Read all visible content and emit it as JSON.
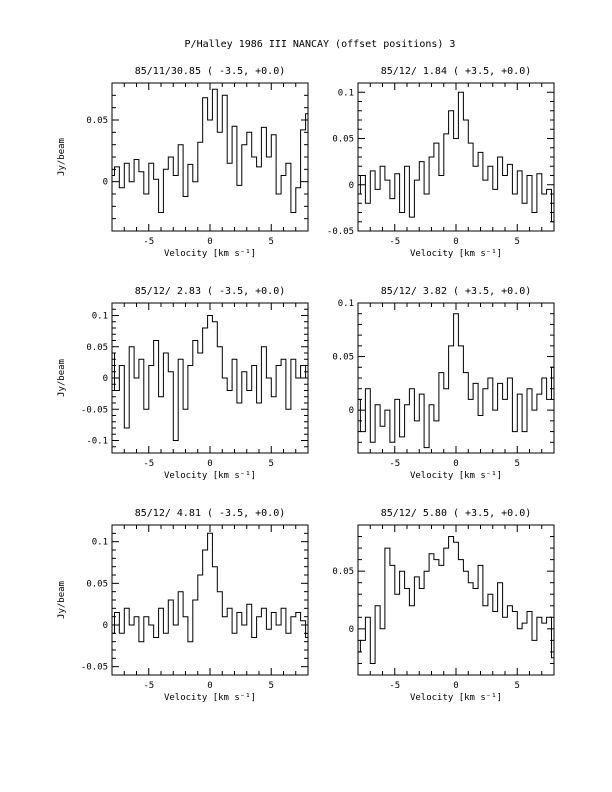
{
  "page_title": "P/Halley 1986 III   NANCAY      (offset positions)     3",
  "chart_data": [
    {
      "type": "line",
      "title": "85/11/30.85  ( -3.5, +0.0)",
      "xlabel": "Velocity [km s⁻¹]",
      "ylabel": "Jy/beam",
      "xlim": [
        -8,
        8
      ],
      "ylim": [
        -0.04,
        0.08
      ],
      "xticks": [
        -5,
        0,
        5
      ],
      "yticks": [
        0,
        0.05
      ],
      "ytick_labels": [
        "0",
        "0.05"
      ],
      "x": [
        -8.0,
        -7.6,
        -7.2,
        -6.8,
        -6.4,
        -6.0,
        -5.6,
        -5.2,
        -4.8,
        -4.4,
        -4.0,
        -3.6,
        -3.2,
        -2.8,
        -2.4,
        -2.0,
        -1.6,
        -1.2,
        -0.8,
        -0.4,
        0.0,
        0.4,
        0.8,
        1.2,
        1.6,
        2.0,
        2.4,
        2.8,
        3.2,
        3.6,
        4.0,
        4.4,
        4.8,
        5.2,
        5.6,
        6.0,
        6.4,
        6.8,
        7.2,
        7.6,
        8.0
      ],
      "y": [
        0.005,
        0.012,
        -0.005,
        0.015,
        0.0,
        0.018,
        0.008,
        -0.01,
        0.015,
        0.002,
        -0.025,
        0.01,
        0.02,
        0.005,
        0.03,
        -0.012,
        0.014,
        0.0,
        0.032,
        0.068,
        0.05,
        0.075,
        0.04,
        0.07,
        0.015,
        0.045,
        -0.003,
        0.03,
        0.04,
        0.02,
        0.012,
        0.044,
        0.02,
        0.038,
        -0.01,
        0.005,
        0.015,
        -0.025,
        -0.005,
        0.042,
        0.055
      ]
    },
    {
      "type": "line",
      "title": "85/12/ 1.84  ( +3.5, +0.0)",
      "xlabel": "Velocity [km s⁻¹]",
      "ylabel": "",
      "xlim": [
        -8,
        8
      ],
      "ylim": [
        -0.05,
        0.11
      ],
      "xticks": [
        -5,
        0,
        5
      ],
      "yticks": [
        -0.05,
        0,
        0.05,
        0.1
      ],
      "ytick_labels": [
        "-0.05",
        "0",
        "0.05",
        "0.1"
      ],
      "x": [
        -8.0,
        -7.6,
        -7.2,
        -6.8,
        -6.4,
        -6.0,
        -5.6,
        -5.2,
        -4.8,
        -4.4,
        -4.0,
        -3.6,
        -3.2,
        -2.8,
        -2.4,
        -2.0,
        -1.6,
        -1.2,
        -0.8,
        -0.4,
        0.0,
        0.4,
        0.8,
        1.2,
        1.6,
        2.0,
        2.4,
        2.8,
        3.2,
        3.6,
        4.0,
        4.4,
        4.8,
        5.2,
        5.6,
        6.0,
        6.4,
        6.8,
        7.2,
        7.6,
        8.0
      ],
      "y": [
        -0.01,
        0.01,
        -0.02,
        0.015,
        -0.005,
        0.02,
        0.005,
        -0.015,
        0.012,
        -0.03,
        0.02,
        -0.035,
        0.005,
        0.025,
        -0.01,
        0.03,
        0.045,
        0.01,
        0.055,
        0.08,
        0.05,
        0.1,
        0.07,
        0.045,
        0.02,
        0.035,
        0.005,
        0.02,
        -0.005,
        0.03,
        0.01,
        0.022,
        -0.01,
        0.015,
        -0.02,
        0.01,
        -0.03,
        0.012,
        -0.01,
        -0.005,
        -0.04
      ]
    },
    {
      "type": "line",
      "title": "85/12/ 2.83  ( -3.5, +0.0)",
      "xlabel": "Velocity [km s⁻¹]",
      "ylabel": "Jy/beam",
      "xlim": [
        -8,
        8
      ],
      "ylim": [
        -0.12,
        0.12
      ],
      "xticks": [
        -5,
        0,
        5
      ],
      "yticks": [
        -0.1,
        -0.05,
        0,
        0.05,
        0.1
      ],
      "ytick_labels": [
        "-0.1",
        "-0.05",
        "0",
        "0.05",
        "0.1"
      ],
      "x": [
        -8.0,
        -7.6,
        -7.2,
        -6.8,
        -6.4,
        -6.0,
        -5.6,
        -5.2,
        -4.8,
        -4.4,
        -4.0,
        -3.6,
        -3.2,
        -2.8,
        -2.4,
        -2.0,
        -1.6,
        -1.2,
        -0.8,
        -0.4,
        0.0,
        0.4,
        0.8,
        1.2,
        1.6,
        2.0,
        2.4,
        2.8,
        3.2,
        3.6,
        4.0,
        4.4,
        4.8,
        5.2,
        5.6,
        6.0,
        6.4,
        6.8,
        7.2,
        7.6,
        8.0
      ],
      "y": [
        0.04,
        -0.02,
        0.02,
        -0.08,
        0.05,
        0.0,
        0.03,
        -0.05,
        0.02,
        0.06,
        -0.03,
        0.04,
        0.01,
        -0.1,
        0.03,
        -0.05,
        0.02,
        0.06,
        0.04,
        0.08,
        0.1,
        0.09,
        0.05,
        0.0,
        -0.02,
        0.03,
        -0.04,
        0.01,
        -0.02,
        0.02,
        -0.04,
        0.05,
        0.0,
        -0.03,
        0.02,
        0.03,
        -0.05,
        0.03,
        0.0,
        0.02,
        0.0
      ]
    },
    {
      "type": "line",
      "title": "85/12/ 3.82  ( +3.5, +0.0)",
      "xlabel": "Velocity [km s⁻¹]",
      "ylabel": "",
      "xlim": [
        -8,
        8
      ],
      "ylim": [
        -0.04,
        0.1
      ],
      "xticks": [
        -5,
        0,
        5
      ],
      "yticks": [
        0,
        0.05,
        0.1
      ],
      "ytick_labels": [
        "0",
        "0.05",
        "0.1"
      ],
      "x": [
        -8.0,
        -7.6,
        -7.2,
        -6.8,
        -6.4,
        -6.0,
        -5.6,
        -5.2,
        -4.8,
        -4.4,
        -4.0,
        -3.6,
        -3.2,
        -2.8,
        -2.4,
        -2.0,
        -1.6,
        -1.2,
        -0.8,
        -0.4,
        0.0,
        0.4,
        0.8,
        1.2,
        1.6,
        2.0,
        2.4,
        2.8,
        3.2,
        3.6,
        4.0,
        4.4,
        4.8,
        5.2,
        5.6,
        6.0,
        6.4,
        6.8,
        7.2,
        7.6,
        8.0
      ],
      "y": [
        0.01,
        -0.02,
        0.02,
        -0.03,
        0.005,
        -0.015,
        0.0,
        -0.03,
        0.01,
        -0.025,
        0.005,
        0.02,
        -0.01,
        0.015,
        -0.035,
        0.005,
        -0.01,
        0.035,
        0.02,
        0.06,
        0.09,
        0.06,
        0.035,
        0.01,
        0.025,
        -0.005,
        0.02,
        0.03,
        0.0,
        0.025,
        0.01,
        0.03,
        -0.02,
        0.015,
        -0.02,
        0.02,
        0.0,
        0.015,
        0.03,
        0.01,
        0.04
      ]
    },
    {
      "type": "line",
      "title": "85/12/ 4.81  ( -3.5, +0.0)",
      "xlabel": "Velocity [km s⁻¹]",
      "ylabel": "Jy/beam",
      "xlim": [
        -8,
        8
      ],
      "ylim": [
        -0.06,
        0.12
      ],
      "xticks": [
        -5,
        0,
        5
      ],
      "yticks": [
        -0.05,
        0,
        0.05,
        0.1
      ],
      "ytick_labels": [
        "-0.05",
        "0",
        "0.05",
        "0.1"
      ],
      "x": [
        -8.0,
        -7.6,
        -7.2,
        -6.8,
        -6.4,
        -6.0,
        -5.6,
        -5.2,
        -4.8,
        -4.4,
        -4.0,
        -3.6,
        -3.2,
        -2.8,
        -2.4,
        -2.0,
        -1.6,
        -1.2,
        -0.8,
        -0.4,
        0.0,
        0.4,
        0.8,
        1.2,
        1.6,
        2.0,
        2.4,
        2.8,
        3.2,
        3.6,
        4.0,
        4.4,
        4.8,
        5.2,
        5.6,
        6.0,
        6.4,
        6.8,
        7.2,
        7.6,
        8.0
      ],
      "y": [
        -0.01,
        0.015,
        -0.01,
        0.02,
        0.0,
        0.01,
        -0.02,
        0.01,
        0.0,
        -0.015,
        0.02,
        -0.01,
        0.03,
        0.0,
        0.04,
        0.01,
        -0.02,
        0.03,
        0.06,
        0.09,
        0.11,
        0.07,
        0.04,
        0.01,
        0.02,
        -0.01,
        0.015,
        0.0,
        0.025,
        -0.015,
        0.01,
        0.02,
        -0.005,
        0.015,
        0.0,
        0.02,
        -0.01,
        0.01,
        0.015,
        0.005,
        -0.015
      ]
    },
    {
      "type": "line",
      "title": "85/12/ 5.80  ( +3.5, +0.0)",
      "xlabel": "Velocity [km s⁻¹]",
      "ylabel": "",
      "xlim": [
        -8,
        8
      ],
      "ylim": [
        -0.04,
        0.09
      ],
      "xticks": [
        -5,
        0,
        5
      ],
      "yticks": [
        0,
        0.05
      ],
      "ytick_labels": [
        "0",
        "0.05"
      ],
      "x": [
        -8.0,
        -7.6,
        -7.2,
        -6.8,
        -6.4,
        -6.0,
        -5.6,
        -5.2,
        -4.8,
        -4.4,
        -4.0,
        -3.6,
        -3.2,
        -2.8,
        -2.4,
        -2.0,
        -1.6,
        -1.2,
        -0.8,
        -0.4,
        0.0,
        0.4,
        0.8,
        1.2,
        1.6,
        2.0,
        2.4,
        2.8,
        3.2,
        3.6,
        4.0,
        4.4,
        4.8,
        5.2,
        5.6,
        6.0,
        6.4,
        6.8,
        7.2,
        7.6,
        8.0
      ],
      "y": [
        -0.02,
        -0.01,
        0.01,
        -0.03,
        0.02,
        0.0,
        0.07,
        0.055,
        0.03,
        0.05,
        0.035,
        0.02,
        0.045,
        0.035,
        0.05,
        0.065,
        0.06,
        0.055,
        0.07,
        0.08,
        0.075,
        0.06,
        0.05,
        0.04,
        0.035,
        0.055,
        0.02,
        0.03,
        0.015,
        0.04,
        0.01,
        0.02,
        0.015,
        0.0,
        0.005,
        0.015,
        -0.01,
        0.01,
        0.005,
        0.01,
        -0.025
      ]
    }
  ]
}
